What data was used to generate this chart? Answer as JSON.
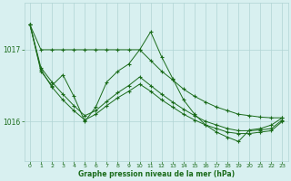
{
  "line_color": "#1a6b1a",
  "background_color": "#d8f0f0",
  "grid_color": "#b0d4d4",
  "xlabel": "Graphe pression niveau de la mer (hPa)",
  "xlabel_color": "#1a6b1a",
  "tick_color": "#1a6b1a",
  "xlim": [
    -0.5,
    23.5
  ],
  "ylim": [
    1015.45,
    1017.65
  ],
  "yticks": [
    1016,
    1017
  ],
  "xticks": [
    0,
    1,
    2,
    3,
    4,
    5,
    6,
    7,
    8,
    9,
    10,
    11,
    12,
    13,
    14,
    15,
    16,
    17,
    18,
    19,
    20,
    21,
    22,
    23
  ],
  "series": [
    {
      "x": [
        0,
        1,
        2,
        3,
        4,
        5,
        6,
        7,
        8,
        9,
        10,
        11,
        12,
        13,
        14,
        15,
        16,
        17,
        18,
        19,
        20,
        21,
        22,
        23
      ],
      "y": [
        1017.35,
        1017.0,
        1017.0,
        1017.0,
        1017.0,
        1017.0,
        1017.0,
        1017.0,
        1017.0,
        1017.0,
        1017.0,
        1016.85,
        1016.7,
        1016.58,
        1016.45,
        1016.35,
        1016.27,
        1016.2,
        1016.15,
        1016.1,
        1016.08,
        1016.06,
        1016.05,
        1016.05
      ]
    },
    {
      "x": [
        0,
        1,
        2,
        3,
        4,
        5,
        6,
        7,
        8,
        9,
        10,
        11,
        12,
        13,
        14,
        15,
        16,
        17,
        18,
        19,
        20,
        21,
        22,
        23
      ],
      "y": [
        1017.35,
        1016.7,
        1016.5,
        1016.65,
        1016.35,
        1016.0,
        1016.2,
        1016.55,
        1016.7,
        1016.8,
        1017.0,
        1017.25,
        1016.9,
        1016.6,
        1016.3,
        1016.1,
        1015.95,
        1015.85,
        1015.78,
        1015.72,
        1015.88,
        1015.9,
        1015.95,
        1016.05
      ]
    },
    {
      "x": [
        0,
        1,
        2,
        3,
        4,
        5,
        6,
        7,
        8,
        9,
        10,
        11,
        12,
        13,
        14,
        15,
        16,
        17,
        18,
        19,
        20,
        21,
        22,
        23
      ],
      "y": [
        1017.35,
        1016.75,
        1016.55,
        1016.38,
        1016.22,
        1016.08,
        1016.15,
        1016.28,
        1016.4,
        1016.5,
        1016.62,
        1016.5,
        1016.38,
        1016.27,
        1016.17,
        1016.08,
        1016.0,
        1015.95,
        1015.9,
        1015.87,
        1015.87,
        1015.88,
        1015.9,
        1016.02
      ]
    },
    {
      "x": [
        0,
        1,
        2,
        3,
        4,
        5,
        6,
        7,
        8,
        9,
        10,
        11,
        12,
        13,
        14,
        15,
        16,
        17,
        18,
        19,
        20,
        21,
        22,
        23
      ],
      "y": [
        1017.35,
        1016.72,
        1016.48,
        1016.3,
        1016.15,
        1016.02,
        1016.1,
        1016.22,
        1016.33,
        1016.42,
        1016.52,
        1016.42,
        1016.3,
        1016.2,
        1016.1,
        1016.02,
        1015.95,
        1015.9,
        1015.85,
        1015.83,
        1015.83,
        1015.85,
        1015.87,
        1016.0
      ]
    }
  ]
}
